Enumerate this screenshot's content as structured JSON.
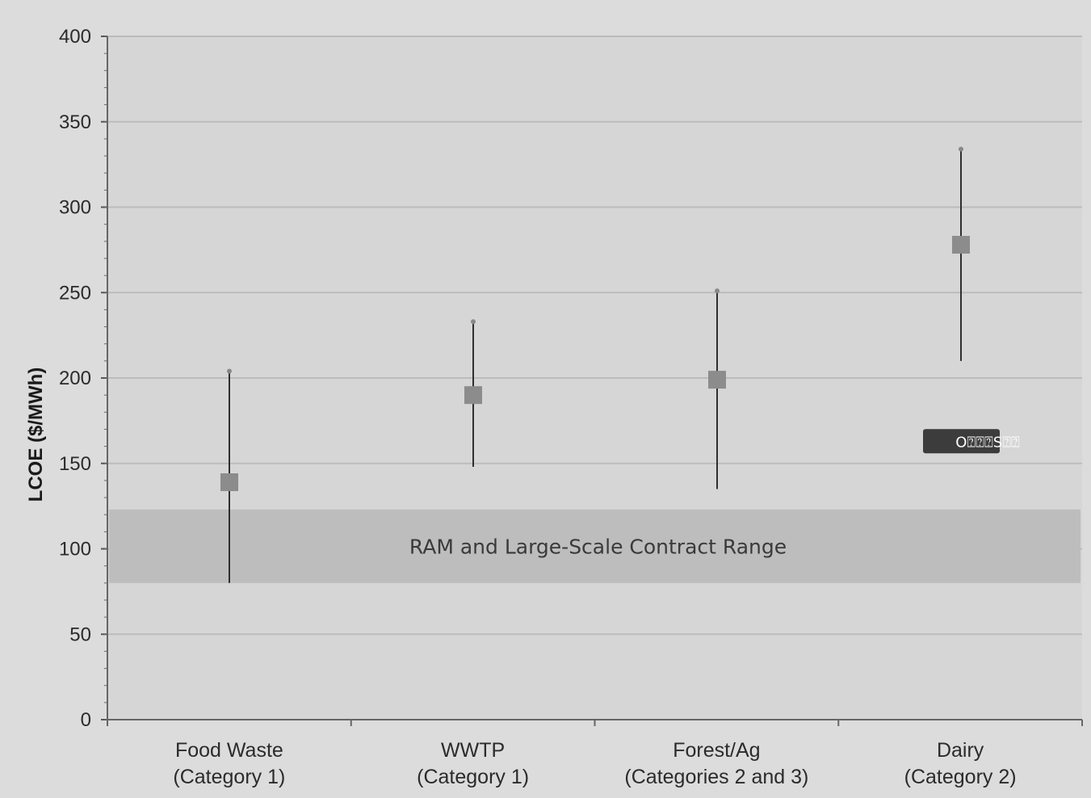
{
  "chart_data": {
    "type": "scatter",
    "ylabel": "LCOE ($/MWh)",
    "ylim": [
      0,
      400
    ],
    "ytick_step": 50,
    "grid": true,
    "categories": [
      [
        "Food Waste",
        "(Category 1)"
      ],
      [
        "WWTP",
        "(Category 1)"
      ],
      [
        "Forest/Ag",
        "(Categories 2 and 3)"
      ],
      [
        "Dairy",
        "(Category 2)"
      ]
    ],
    "points": [
      {
        "category": "Food Waste",
        "value": 139,
        "low": 80,
        "high": 204
      },
      {
        "category": "WWTP",
        "value": 190,
        "low": 148,
        "high": 233
      },
      {
        "category": "Forest/Ag",
        "value": 199,
        "low": 135,
        "high": 251
      },
      {
        "category": "Dairy",
        "value": 278,
        "low": 210,
        "high": 334
      }
    ],
    "band": {
      "label": "RAM and Large-Scale Contract Range",
      "low": 80,
      "high": 123
    },
    "badge": {
      "label": "O⍰⍰⍰S⍰⍰",
      "category": "Dairy",
      "value": 163
    },
    "colors": {
      "background": "#dcdcdc",
      "marker": "#8c8c8c",
      "errorbar": "#2f2f2f",
      "band": "#bdbdbd",
      "grid": "#bcbcbc",
      "badge": "#3c3c3c"
    }
  }
}
